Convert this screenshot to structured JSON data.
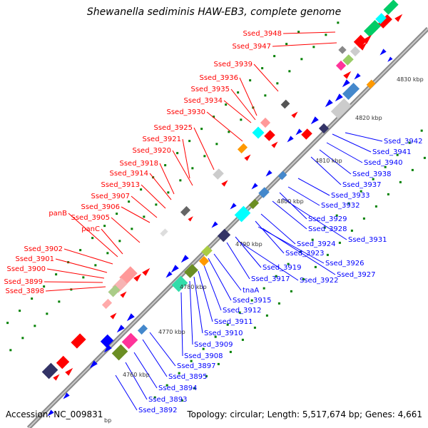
{
  "header": {
    "title": "Shewanella sediminis HAW-EB3, complete genome"
  },
  "footer": {
    "accession": "Accession: NC_009831",
    "summary": "Topology: circular; Length: 5,517,674 bp; Genes: 4,661"
  },
  "colors": {
    "forward": "#ff0000",
    "reverse": "#0000ff",
    "backbone": "#999999",
    "ticks": "#008000",
    "pink": "#ff3399",
    "cyan": "#00ffff",
    "olive": "#6b8e23",
    "navy": "#333366",
    "gray": "#888888"
  },
  "scale_labels": [
    "4760 kbp",
    "4770 kbp",
    "4780 kbp",
    "4790 kbp",
    "4800 kbp",
    "4810 kbp",
    "4820 kbp",
    "4830 kbp",
    "bp"
  ],
  "forward_labels": [
    "Ssed_3948",
    "Ssed_3947",
    "Ssed_3939",
    "Ssed_3936",
    "Ssed_3935",
    "Ssed_3934",
    "Ssed_3930",
    "Ssed_3925",
    "Ssed_3921",
    "Ssed_3920",
    "Ssed_3918",
    "Ssed_3914",
    "Ssed_3913",
    "Ssed_3907",
    "Ssed_3906",
    "panB",
    "Ssed_3905",
    "panC",
    "Ssed_3902",
    "Ssed_3901",
    "Ssed_3900",
    "Ssed_3899",
    "Ssed_3898"
  ],
  "reverse_labels": [
    "Ssed_3942",
    "Ssed_3941",
    "Ssed_3940",
    "Ssed_3938",
    "Ssed_3937",
    "Ssed_3933",
    "Ssed_3932",
    "Ssed_3929",
    "Ssed_3928",
    "Ssed_3931",
    "Ssed_3924",
    "Ssed_3923",
    "Ssed_3926",
    "Ssed_3927",
    "Ssed_3919",
    "Ssed_3917",
    "Ssed_3922",
    "tnaA",
    "Ssed_3915",
    "Ssed_3912",
    "Ssed_3911",
    "Ssed_3910",
    "Ssed_3909",
    "Ssed_3908",
    "Ssed_3897",
    "Ssed_3895",
    "Ssed_3894",
    "Ssed_3893",
    "Ssed_3892"
  ]
}
